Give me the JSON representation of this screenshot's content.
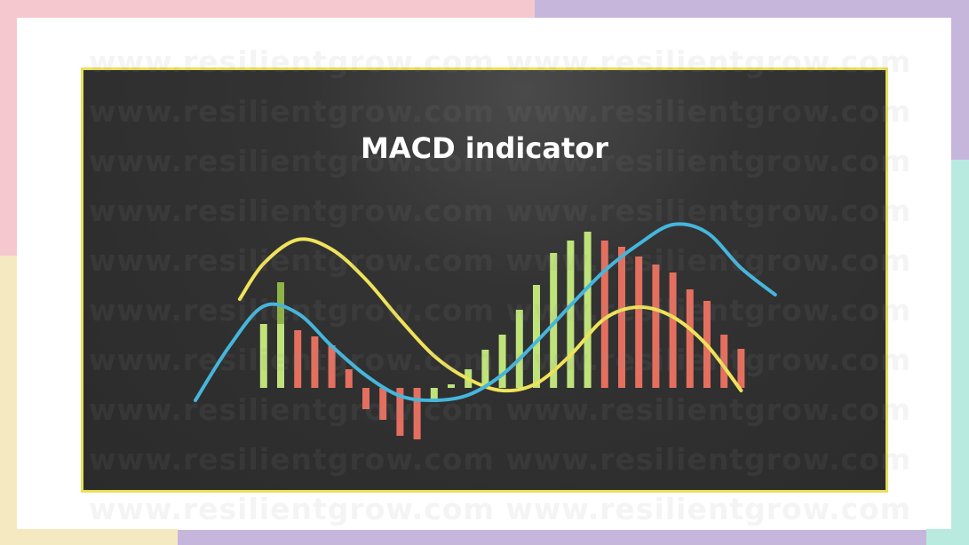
{
  "colors": {
    "bg_pink": "#f5c8d0",
    "bg_purple": "#c7b6dc",
    "bg_mint": "#b9eadf",
    "bg_cream": "#f5e9c2",
    "panel_border": "#e8df5a",
    "macd_line": "#45b6dc",
    "signal_line": "#efe35a",
    "hist_positive": "#bfe37a",
    "hist_positive_dark": "#8fb347",
    "hist_negative": "#e46f5f"
  },
  "watermark": {
    "text": "www.resilientgrow.com www.resilientgrow.com",
    "rows": 10
  },
  "chart_data": {
    "type": "bar",
    "title": "MACD indicator",
    "xlabel": "",
    "ylabel": "",
    "ylim": [
      -60,
      180
    ],
    "x_range": [
      0,
      34
    ],
    "bars": [
      {
        "x": 4,
        "value": 72,
        "color": "positive"
      },
      {
        "x": 5,
        "value": 119,
        "color": "positive",
        "value2": 72
      },
      {
        "x": 6,
        "value": 65,
        "color": "negative"
      },
      {
        "x": 7,
        "value": 58,
        "color": "negative"
      },
      {
        "x": 8,
        "value": 48,
        "color": "negative"
      },
      {
        "x": 9,
        "value": 21,
        "color": "negative"
      },
      {
        "x": 10,
        "value": -24,
        "color": "negative"
      },
      {
        "x": 11,
        "value": -36,
        "color": "negative"
      },
      {
        "x": 12,
        "value": -54,
        "color": "negative"
      },
      {
        "x": 13,
        "value": -58,
        "color": "negative"
      },
      {
        "x": 14,
        "value": -16,
        "color": "positive"
      },
      {
        "x": 15,
        "value": 4,
        "color": "positive"
      },
      {
        "x": 16,
        "value": 21,
        "color": "positive"
      },
      {
        "x": 17,
        "value": 43,
        "color": "positive"
      },
      {
        "x": 18,
        "value": 60,
        "color": "positive"
      },
      {
        "x": 19,
        "value": 88,
        "color": "positive"
      },
      {
        "x": 20,
        "value": 116,
        "color": "positive"
      },
      {
        "x": 21,
        "value": 152,
        "color": "positive"
      },
      {
        "x": 22,
        "value": 166,
        "color": "positive"
      },
      {
        "x": 23,
        "value": 176,
        "color": "positive"
      },
      {
        "x": 24,
        "value": 166,
        "color": "negative"
      },
      {
        "x": 25,
        "value": 159,
        "color": "negative"
      },
      {
        "x": 26,
        "value": 148,
        "color": "negative"
      },
      {
        "x": 27,
        "value": 139,
        "color": "negative"
      },
      {
        "x": 28,
        "value": 130,
        "color": "negative"
      },
      {
        "x": 29,
        "value": 111,
        "color": "negative"
      },
      {
        "x": 30,
        "value": 98,
        "color": "negative"
      },
      {
        "x": 31,
        "value": 60,
        "color": "negative"
      },
      {
        "x": 32,
        "value": 44,
        "color": "negative"
      }
    ],
    "macd_line": {
      "x": [
        0,
        2,
        4,
        6,
        8,
        10,
        12,
        14,
        16,
        18,
        20,
        22,
        24,
        26,
        28,
        30,
        32,
        34
      ],
      "y": [
        -14,
        47,
        92,
        84,
        47,
        14,
        -9,
        -14,
        -8,
        15,
        52,
        93,
        132,
        162,
        184,
        175,
        135,
        105
      ]
    },
    "signal_line": {
      "x": [
        2.6,
        4,
        6,
        8,
        10,
        12,
        14,
        16,
        18,
        20,
        22,
        24,
        26,
        28,
        30,
        32
      ],
      "y": [
        100,
        140,
        167,
        156,
        122,
        77,
        36,
        10,
        -3,
        5,
        37,
        78,
        91,
        80,
        48,
        -3
      ]
    },
    "grid": false,
    "legend": "none"
  }
}
